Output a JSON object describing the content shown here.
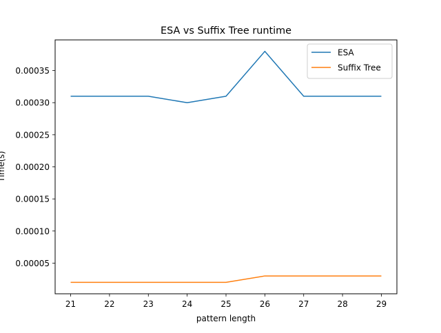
{
  "chart_data": {
    "type": "line",
    "title": "ESA vs Suffix Tree runtime",
    "xlabel": "pattern length",
    "ylabel": "Time(s)",
    "x": [
      21,
      22,
      23,
      24,
      25,
      26,
      27,
      28,
      29
    ],
    "xlim": [
      20.6,
      29.4
    ],
    "ylim": [
      2.2e-06,
      0.0003978
    ],
    "xticks": [
      "21",
      "22",
      "23",
      "24",
      "25",
      "26",
      "27",
      "28",
      "29"
    ],
    "yticks": [
      {
        "value": 5e-05,
        "label": "0.00005"
      },
      {
        "value": 0.0001,
        "label": "0.00010"
      },
      {
        "value": 0.00015,
        "label": "0.00015"
      },
      {
        "value": 0.0002,
        "label": "0.00020"
      },
      {
        "value": 0.00025,
        "label": "0.00025"
      },
      {
        "value": 0.0003,
        "label": "0.00030"
      },
      {
        "value": 0.00035,
        "label": "0.00035"
      }
    ],
    "grid": false,
    "legend_position": "top-right",
    "series": [
      {
        "name": "ESA",
        "color": "#1f77b4",
        "values": [
          0.00031,
          0.00031,
          0.00031,
          0.0003,
          0.00031,
          0.00038,
          0.00031,
          0.00031,
          0.00031
        ]
      },
      {
        "name": "Suffix Tree",
        "color": "#ff7f0e",
        "values": [
          2e-05,
          2e-05,
          2e-05,
          2e-05,
          2e-05,
          3e-05,
          3e-05,
          3e-05,
          3e-05
        ]
      }
    ]
  }
}
